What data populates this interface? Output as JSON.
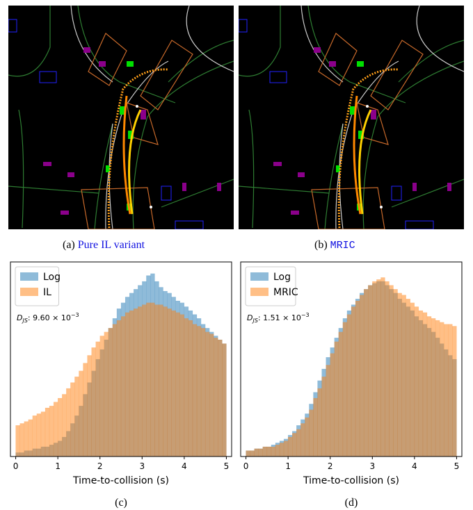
{
  "images": [
    {
      "label": "(a)",
      "caption": "Pure IL variant"
    },
    {
      "label": "(b)",
      "caption": "MRIC"
    }
  ],
  "chart_data": [
    {
      "type": "histogram",
      "caption": "(c)",
      "xlabel": "Time-to-collision (s)",
      "annotation": {
        "symbol": "D",
        "subscript": "JS",
        "text": ": 9.60 × 10",
        "superscript": "−3"
      },
      "bins": [
        0,
        0.1,
        0.2,
        0.3,
        0.4,
        0.5,
        0.6,
        0.7,
        0.8,
        0.9,
        1,
        1.1,
        1.2,
        1.3,
        1.4,
        1.5,
        1.6,
        1.7,
        1.8,
        1.9,
        2,
        2.1,
        2.2,
        2.3,
        2.4,
        2.5,
        2.6,
        2.7,
        2.8,
        2.9,
        3,
        3.1,
        3.2,
        3.3,
        3.4,
        3.5,
        3.6,
        3.7,
        3.8,
        3.9,
        4,
        4.1,
        4.2,
        4.3,
        4.4,
        4.5,
        4.6,
        4.7,
        4.8,
        4.9,
        5
      ],
      "series": [
        {
          "name": "Log",
          "color": "#1f77b4",
          "values": [
            2,
            2,
            3,
            3,
            4,
            4,
            5,
            5,
            6,
            7,
            8,
            10,
            13,
            17,
            21,
            26,
            32,
            38,
            44,
            50,
            55,
            60,
            66,
            71,
            76,
            79,
            82,
            84,
            86,
            88,
            90,
            93,
            94,
            90,
            87,
            85,
            84,
            82,
            80,
            79,
            77,
            75,
            73,
            71,
            68,
            66,
            64,
            62,
            60,
            58
          ]
        },
        {
          "name": "IL",
          "color": "#ff7f0e",
          "values": [
            16,
            17,
            18,
            19,
            21,
            22,
            23,
            25,
            26,
            28,
            30,
            32,
            35,
            38,
            41,
            44,
            48,
            52,
            56,
            59,
            62,
            64,
            66,
            68,
            70,
            72,
            74,
            75,
            76,
            77,
            78,
            79,
            79,
            78,
            78,
            77,
            76,
            75,
            74,
            73,
            71,
            70,
            68,
            67,
            66,
            64,
            63,
            61,
            60,
            58
          ]
        }
      ],
      "xlim": [
        -0.125,
        5.125
      ],
      "ylim": [
        0,
        100
      ],
      "xticks": [
        0,
        1,
        2,
        3,
        4,
        5
      ],
      "legend": "upper left",
      "opacity": 0.5
    },
    {
      "type": "histogram",
      "caption": "(d)",
      "xlabel": "Time-to-collision (s)",
      "annotation": {
        "symbol": "D",
        "subscript": "JS",
        "text": ": 1.51 × 10",
        "superscript": "−3"
      },
      "bins": [
        0,
        0.1,
        0.2,
        0.3,
        0.4,
        0.5,
        0.6,
        0.7,
        0.8,
        0.9,
        1,
        1.1,
        1.2,
        1.3,
        1.4,
        1.5,
        1.6,
        1.7,
        1.8,
        1.9,
        2,
        2.1,
        2.2,
        2.3,
        2.4,
        2.5,
        2.6,
        2.7,
        2.8,
        2.9,
        3,
        3.1,
        3.2,
        3.3,
        3.4,
        3.5,
        3.6,
        3.7,
        3.8,
        3.9,
        4,
        4.1,
        4.2,
        4.3,
        4.4,
        4.5,
        4.6,
        4.7,
        4.8,
        4.9,
        5
      ],
      "series": [
        {
          "name": "Log",
          "color": "#1f77b4",
          "values": [
            3,
            3,
            4,
            4,
            5,
            5,
            6,
            7,
            8,
            9,
            11,
            13,
            16,
            19,
            22,
            27,
            33,
            39,
            45,
            51,
            56,
            61,
            66,
            71,
            75,
            78,
            81,
            84,
            86,
            88,
            89,
            90,
            90,
            88,
            86,
            84,
            81,
            79,
            77,
            75,
            72,
            70,
            68,
            66,
            64,
            61,
            58,
            55,
            52,
            50
          ]
        },
        {
          "name": "MRIC",
          "color": "#ff7f0e",
          "values": [
            3,
            3,
            4,
            4,
            5,
            5,
            5,
            6,
            7,
            8,
            10,
            12,
            14,
            17,
            20,
            24,
            30,
            35,
            41,
            47,
            53,
            59,
            64,
            69,
            73,
            77,
            80,
            83,
            86,
            88,
            90,
            91,
            92,
            90,
            88,
            86,
            84,
            83,
            81,
            79,
            77,
            75,
            74,
            72,
            71,
            70,
            69,
            68,
            68,
            67
          ]
        }
      ],
      "xlim": [
        -0.125,
        5.125
      ],
      "ylim": [
        0,
        100
      ],
      "xticks": [
        0,
        1,
        2,
        3,
        4,
        5
      ],
      "legend": "upper left",
      "opacity": 0.5
    }
  ]
}
